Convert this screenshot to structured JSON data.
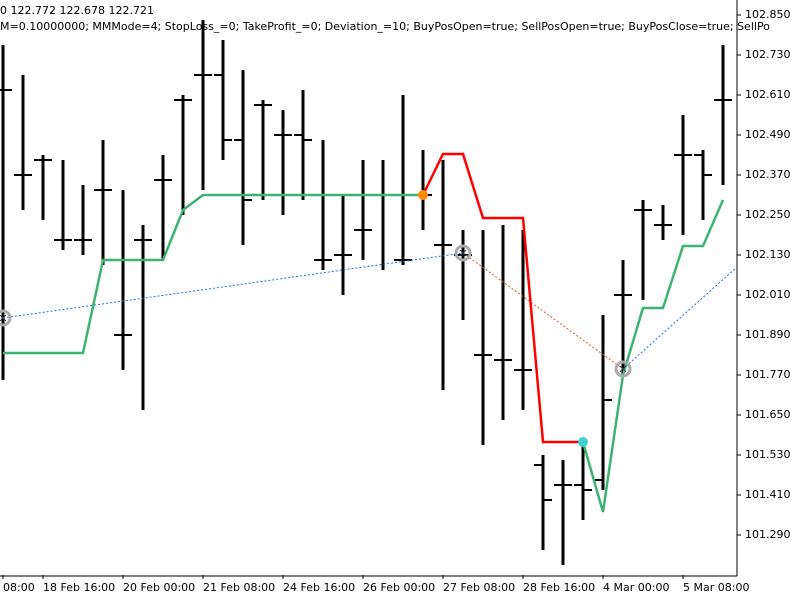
{
  "chart_data": {
    "type": "ohlc",
    "header_lines": [
      "0 122.772 122.678 122.721",
      "M=0.10000000; MMMode=4; StopLoss_=0; TakeProfit_=0; Deviation_=10; BuyPosOpen=true; SellPosOpen=true; BuyPosClose=true; SellPo"
    ],
    "open": [
      102.625,
      102.37,
      102.415,
      102.175,
      102.175,
      102.325,
      101.89,
      102.175,
      102.355,
      102.595,
      102.67,
      102.67,
      102.475,
      102.58,
      102.49,
      102.49,
      102.115,
      102.13,
      102.205,
      102.31,
      102.115,
      102.31,
      102.16,
      102.13,
      101.83,
      101.815,
      101.785,
      101.5,
      101.44,
      101.44,
      101.455,
      102.01,
      102.265,
      102.22,
      102.43,
      102.43,
      102.595
    ],
    "high": [
      102.76,
      102.67,
      102.43,
      102.415,
      102.34,
      102.475,
      102.325,
      102.22,
      102.43,
      102.61,
      102.835,
      102.775,
      102.685,
      102.595,
      102.565,
      102.625,
      102.475,
      102.31,
      102.415,
      102.415,
      102.61,
      102.445,
      102.415,
      102.205,
      102.205,
      102.22,
      102.205,
      101.53,
      101.515,
      101.575,
      101.95,
      102.115,
      102.295,
      102.28,
      102.55,
      102.445,
      102.76
    ],
    "low": [
      101.755,
      102.265,
      102.235,
      102.145,
      102.13,
      102.1,
      101.785,
      101.665,
      102.115,
      102.25,
      102.325,
      102.415,
      102.16,
      102.295,
      102.25,
      102.295,
      102.085,
      102.01,
      102.115,
      102.085,
      102.1,
      102.205,
      101.725,
      101.935,
      101.56,
      101.635,
      101.665,
      101.245,
      101.2,
      101.335,
      101.425,
      101.77,
      101.995,
      102.175,
      102.19,
      102.235,
      102.34
    ],
    "close": [
      102.625,
      102.37,
      102.415,
      102.175,
      102.175,
      102.325,
      101.89,
      102.175,
      102.355,
      102.595,
      102.67,
      102.475,
      102.295,
      102.58,
      102.49,
      102.475,
      102.115,
      102.13,
      102.205,
      102.31,
      102.115,
      102.31,
      102.16,
      102.13,
      101.83,
      101.815,
      101.785,
      101.395,
      101.44,
      101.425,
      101.695,
      102.01,
      102.265,
      102.22,
      102.43,
      102.37,
      102.595
    ],
    "bar_color": "#000000",
    "series": [
      {
        "color": "#3cb371",
        "values": [
          101.836,
          101.836,
          101.836,
          101.836,
          101.836,
          102.115,
          102.115,
          102.115,
          102.115,
          102.265,
          102.31,
          102.31,
          102.31,
          102.31,
          102.31,
          102.31,
          102.31,
          102.31,
          102.31,
          102.31,
          102.31,
          102.31,
          null,
          null,
          null,
          null,
          null,
          null,
          null,
          101.569,
          101.359,
          101.77,
          101.971,
          101.971,
          102.157,
          102.157,
          102.295
        ]
      },
      {
        "color": "#ff0000",
        "values": [
          null,
          null,
          null,
          null,
          null,
          null,
          null,
          null,
          null,
          null,
          null,
          null,
          null,
          null,
          null,
          null,
          null,
          null,
          null,
          null,
          null,
          102.31,
          102.433,
          102.433,
          102.241,
          102.241,
          102.241,
          101.569,
          101.569,
          101.569,
          null,
          null,
          null,
          null,
          null,
          null,
          null
        ]
      }
    ],
    "points": [
      {
        "x": 21,
        "value": 102.31,
        "color": "#ff8c00"
      },
      {
        "x": 29,
        "value": 101.569,
        "color": "#40d0d0"
      }
    ],
    "signals": [
      {
        "x": 0,
        "value": 101.941
      },
      {
        "x": 23,
        "value": 102.136
      },
      {
        "x": 31,
        "value": 101.788
      }
    ],
    "trade_lines": [
      {
        "x": [
          0,
          23
        ],
        "values": [
          101.941,
          102.136
        ],
        "color": "#1e6fd9"
      },
      {
        "x": [
          23,
          31
        ],
        "values": [
          102.136,
          101.788
        ],
        "color": "#e05a2a"
      },
      {
        "x": [
          31,
          36.7
        ],
        "values": [
          101.788,
          102.094
        ],
        "color": "#1e6fd9"
      }
    ],
    "xlim": [
      -0.15,
      36.7
    ],
    "xticks": [
      {
        "value": 0,
        "label": "08:00"
      },
      {
        "value": 2,
        "label": "18 Feb 16:00"
      },
      {
        "value": 6,
        "label": "20 Feb 00:00"
      },
      {
        "value": 10,
        "label": "21 Feb 08:00"
      },
      {
        "value": 14,
        "label": "24 Feb 16:00"
      },
      {
        "value": 18,
        "label": "26 Feb 00:00"
      },
      {
        "value": 22,
        "label": "27 Feb 08:00"
      },
      {
        "value": 26,
        "label": "28 Feb 16:00"
      },
      {
        "value": 30,
        "label": "4 Mar 00:00"
      },
      {
        "value": 34,
        "label": "5 Mar 08:00"
      }
    ],
    "ylim": [
      101.17,
      102.895
    ],
    "yticks": [
      {
        "value": 102.85,
        "label": "102.850"
      },
      {
        "value": 102.73,
        "label": "102.730"
      },
      {
        "value": 102.61,
        "label": "102.610"
      },
      {
        "value": 102.49,
        "label": "102.490"
      },
      {
        "value": 102.37,
        "label": "102.370"
      },
      {
        "value": 102.25,
        "label": "102.250"
      },
      {
        "value": 102.13,
        "label": "102.130"
      },
      {
        "value": 102.01,
        "label": "102.010"
      },
      {
        "value": 101.89,
        "label": "101.890"
      },
      {
        "value": 101.77,
        "label": "101.770"
      },
      {
        "value": 101.65,
        "label": "101.650"
      },
      {
        "value": 101.53,
        "label": "101.530"
      },
      {
        "value": 101.41,
        "label": "101.410"
      },
      {
        "value": 101.29,
        "label": "101.290"
      }
    ]
  }
}
